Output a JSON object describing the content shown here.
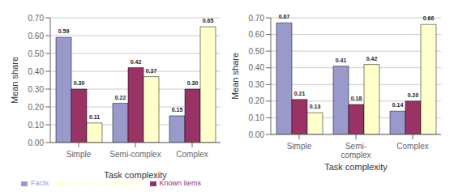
{
  "chart_data": [
    {
      "type": "bar",
      "categories": [
        "Simple",
        "Semi-complex",
        "Complex"
      ],
      "series": [
        {
          "name": "Facts",
          "color": "#9999CC",
          "values": [
            0.59,
            0.22,
            0.15
          ],
          "value_labels": [
            "0.59",
            "0.22",
            "0.15"
          ]
        },
        {
          "name": "Known items",
          "color": "#993366",
          "values": [
            0.3,
            0.42,
            0.3
          ],
          "value_labels": [
            "0.30",
            "0.42",
            "0.30"
          ]
        },
        {
          "name": "Information aggregates",
          "color": "#FFFFCC",
          "values": [
            0.11,
            0.37,
            0.65
          ],
          "value_labels": [
            "0.11",
            "0.37",
            "0.65"
          ]
        }
      ],
      "xlabel": "Task complexity",
      "ylabel": "Mean share",
      "ylim": [
        0.0,
        0.7
      ],
      "yticks": [
        {
          "value": 0.0,
          "label": "0.00"
        },
        {
          "value": 0.1,
          "label": "0.10"
        },
        {
          "value": 0.2,
          "label": "0.20"
        },
        {
          "value": 0.3,
          "label": "0.30"
        },
        {
          "value": 0.4,
          "label": "0.40"
        },
        {
          "value": 0.5,
          "label": "0.50"
        },
        {
          "value": 0.6,
          "label": "0.60"
        },
        {
          "value": 0.7,
          "label": "0.70"
        }
      ],
      "grid": true,
      "data_labels": true,
      "legend": "bottom"
    },
    {
      "type": "bar",
      "categories": [
        "Simple",
        "Semi-\ncomplex",
        "Complex"
      ],
      "series": [
        {
          "name": "Facts",
          "color": "#9999CC",
          "values": [
            0.67,
            0.41,
            0.14
          ],
          "value_labels": [
            "0.67",
            "0.41",
            "0.14"
          ]
        },
        {
          "name": "Known items",
          "color": "#993366",
          "values": [
            0.21,
            0.18,
            0.2
          ],
          "value_labels": [
            "0.21",
            "0.18",
            "0.20"
          ]
        },
        {
          "name": "Information aggregates",
          "color": "#FFFFCC",
          "values": [
            0.13,
            0.42,
            0.66
          ],
          "value_labels": [
            "0.13",
            "0.42",
            "0.66"
          ]
        }
      ],
      "xlabel": "Task complexity",
      "ylabel": "Mean share",
      "ylim": [
        0.0,
        0.7
      ],
      "yticks": [
        {
          "value": 0.0,
          "label": "0.00"
        },
        {
          "value": 0.1,
          "label": "0.10"
        },
        {
          "value": 0.2,
          "label": "0.20"
        },
        {
          "value": 0.3,
          "label": "0.30"
        },
        {
          "value": 0.4,
          "label": "0.40"
        },
        {
          "value": 0.5,
          "label": "0.50"
        },
        {
          "value": 0.6,
          "label": "0.60"
        },
        {
          "value": 0.7,
          "label": "0.70"
        }
      ],
      "grid": true,
      "data_labels": true
    }
  ]
}
